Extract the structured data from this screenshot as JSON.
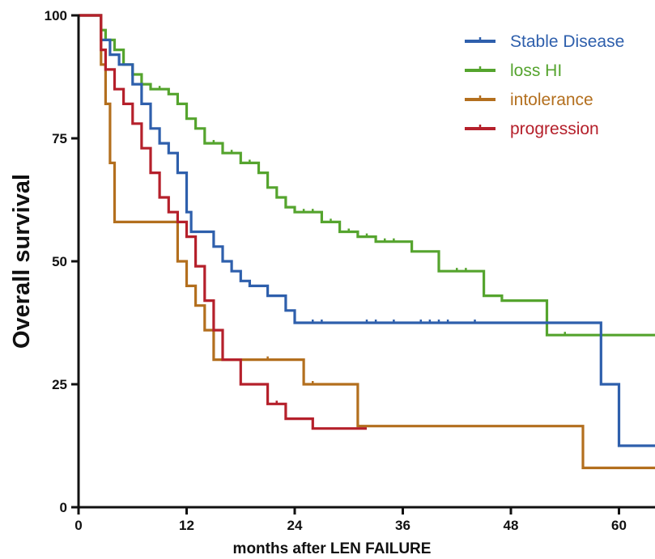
{
  "chart_data": {
    "type": "line",
    "title": "",
    "xlabel": "months after LEN FAILURE",
    "ylabel": "Overall survival",
    "xlim": [
      0,
      64
    ],
    "ylim": [
      0,
      100
    ],
    "x_ticks": [
      0,
      12,
      24,
      36,
      48,
      60
    ],
    "y_ticks": [
      0,
      25,
      50,
      75,
      100
    ],
    "grid": false,
    "legend_position": "top-right",
    "step": true,
    "series": [
      {
        "name": "Stable Disease",
        "color": "#2e5fac",
        "x": [
          0,
          2,
          2.5,
          3.5,
          4.5,
          6,
          7,
          8,
          9,
          10,
          11,
          12,
          12.5,
          13,
          15,
          16,
          17,
          18,
          19,
          21,
          23,
          24,
          34,
          50,
          58,
          60,
          64
        ],
        "y": [
          100,
          100,
          95,
          92,
          90,
          86,
          82,
          77,
          74,
          72,
          68,
          60,
          56,
          56,
          53,
          50,
          48,
          46,
          45,
          43,
          40,
          37.5,
          37.5,
          37.5,
          25,
          12.5,
          12.5
        ],
        "censor_x": [
          26,
          27,
          32,
          33,
          35,
          38,
          39,
          40,
          41,
          44
        ]
      },
      {
        "name": "loss HI",
        "color": "#55a42e",
        "x": [
          0,
          2,
          2.5,
          3,
          4,
          5,
          6,
          7,
          8,
          10,
          11,
          12,
          13,
          14,
          16,
          18,
          20,
          21,
          22,
          23,
          24,
          27,
          29,
          31,
          33,
          37,
          40,
          45,
          47,
          52,
          64
        ],
        "y": [
          100,
          100,
          97,
          95,
          93,
          90,
          88,
          86,
          85,
          84,
          82,
          79,
          77,
          74,
          72,
          70,
          68,
          65,
          63,
          61,
          60,
          58,
          56,
          55,
          54,
          52,
          48,
          43,
          42,
          35,
          35
        ],
        "censor_x": [
          5,
          9,
          15,
          17,
          19,
          25,
          26,
          28,
          30,
          32,
          34,
          35,
          42,
          43,
          54
        ]
      },
      {
        "name": "intolerance",
        "color": "#b36f1e",
        "x": [
          0,
          2,
          2.5,
          3,
          3.5,
          4,
          10,
          11,
          12,
          13,
          14,
          15,
          24,
          25,
          30,
          31,
          56,
          64
        ],
        "y": [
          100,
          100,
          90,
          82,
          70,
          58,
          58,
          50,
          45,
          41,
          36,
          30,
          30,
          25,
          25,
          16.5,
          8,
          8
        ],
        "censor_x": [
          21,
          26
        ]
      },
      {
        "name": "progression",
        "color": "#b5202b",
        "x": [
          0,
          2,
          2.5,
          3,
          4,
          5,
          6,
          7,
          8,
          9,
          10,
          11,
          12,
          13,
          14,
          15,
          16,
          18,
          21,
          23,
          26,
          32
        ],
        "y": [
          100,
          100,
          93,
          89,
          85,
          82,
          78,
          73,
          68,
          63,
          60,
          58,
          55,
          49,
          42,
          36,
          30,
          25,
          21,
          18,
          16,
          16
        ],
        "censor_x": [
          22
        ]
      }
    ]
  }
}
